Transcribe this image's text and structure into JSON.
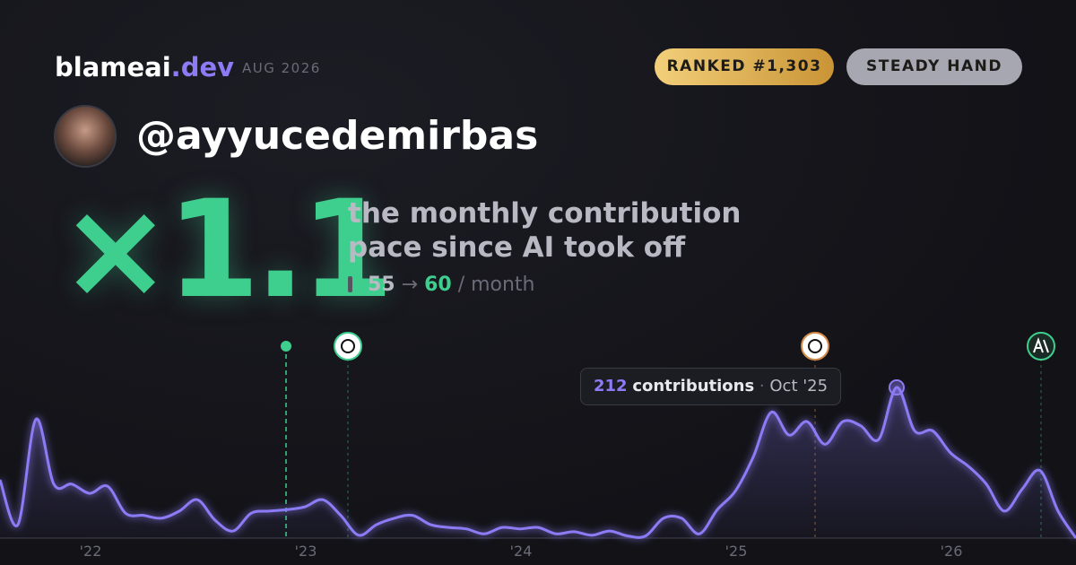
{
  "brand": {
    "name": "blameai",
    "tld": ".dev",
    "date": "AUG 2026"
  },
  "badges": [
    "RANKED #1,303",
    "STEADY HAND"
  ],
  "user": "@ayyucedemirbas",
  "headline": {
    "multiplier": "×1.1",
    "line1": "the monthly contribution",
    "line2": "pace since AI took off",
    "before": 55,
    "arrow": "→",
    "after": 60,
    "unit": "/ month"
  },
  "chart_data": {
    "type": "line",
    "color": "#8b7cf6",
    "categories": [
      null,
      null,
      null,
      null,
      null,
      "'22",
      null,
      null,
      null,
      null,
      null,
      null,
      null,
      null,
      null,
      null,
      null,
      "'23",
      null,
      null,
      null,
      null,
      null,
      null,
      null,
      null,
      null,
      null,
      null,
      "'24",
      null,
      null,
      null,
      null,
      null,
      null,
      null,
      null,
      null,
      null,
      null,
      "'25",
      null,
      null,
      null,
      null,
      null,
      null,
      null,
      null,
      null,
      null,
      null,
      "'26",
      null,
      null,
      null,
      null,
      null,
      null,
      null
    ],
    "values": [
      82,
      19,
      167,
      76,
      76,
      63,
      73,
      35,
      32,
      28,
      38,
      54,
      25,
      10,
      35,
      38,
      40,
      44,
      54,
      32,
      4,
      19,
      28,
      32,
      19,
      15,
      13,
      6,
      15,
      13,
      15,
      6,
      9,
      4,
      10,
      3,
      3,
      28,
      28,
      6,
      40,
      66,
      114,
      177,
      145,
      164,
      132,
      164,
      158,
      139,
      212,
      151,
      151,
      120,
      101,
      76,
      38,
      69,
      95,
      38,
      0
    ],
    "tooltip": {
      "unit": "contributions",
      "sep": "·",
      "date": "Oct '25"
    }
  }
}
